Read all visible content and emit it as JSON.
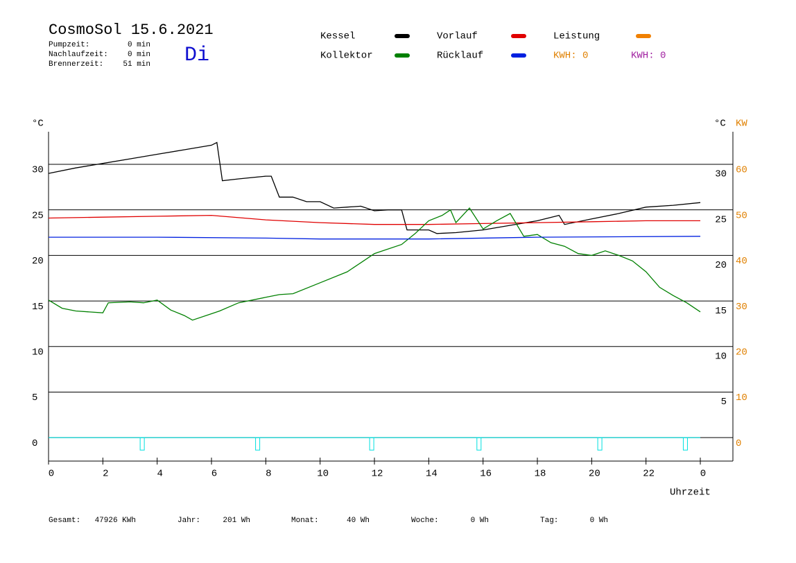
{
  "header": {
    "title": "CosmoSol 15.6.2021",
    "day": "Di",
    "stats": [
      {
        "label": "Pumpzeit:",
        "value": "0 min"
      },
      {
        "label": "Nachlaufzeit:",
        "value": "0 min"
      },
      {
        "label": "Brennerzeit:",
        "value": "51 min"
      }
    ]
  },
  "chart_data": {
    "type": "line",
    "ylabel": "°C",
    "y2label_left": "°C",
    "y2label": "KW",
    "xlabel": "Uhrzeit",
    "xlim": [
      0,
      25.2
    ],
    "xticks": [
      0,
      2,
      4,
      6,
      8,
      10,
      12,
      14,
      16,
      18,
      20,
      22,
      {
        "value": 24,
        "label": "0"
      }
    ],
    "ylim": [
      -2.5,
      33.5
    ],
    "yticks": [
      0,
      5,
      10,
      15,
      20,
      25,
      30
    ],
    "right_yticks": [
      5,
      10,
      15,
      20,
      25,
      30
    ],
    "y2lim": [
      -5,
      67
    ],
    "y2ticks": [
      0,
      10,
      20,
      30,
      40,
      50,
      60
    ],
    "grid": true,
    "series": [
      {
        "name": "Kessel",
        "color": "#000000",
        "x": [
          0,
          1,
          2,
          3,
          4,
          5,
          6,
          6.2,
          6.4,
          7,
          8,
          8.2,
          8.5,
          9,
          9.5,
          10,
          10.5,
          11,
          11.5,
          12,
          12.5,
          13,
          13.2,
          14,
          14.3,
          15,
          16,
          17,
          18,
          18.8,
          19,
          20,
          21,
          22,
          23,
          24
        ],
        "values": [
          29.0,
          29.6,
          30.1,
          30.6,
          31.1,
          31.6,
          32.1,
          32.4,
          28.2,
          28.4,
          28.7,
          28.7,
          26.4,
          26.4,
          25.9,
          25.9,
          25.2,
          25.3,
          25.4,
          24.9,
          25.0,
          25.0,
          22.8,
          22.8,
          22.4,
          22.5,
          22.8,
          23.3,
          23.8,
          24.4,
          23.4,
          24.0,
          24.6,
          25.3,
          25.5,
          25.8
        ]
      },
      {
        "name": "Vorlauf",
        "color": "#e00000",
        "x": [
          0,
          2,
          4,
          6,
          8,
          10,
          12,
          14,
          16,
          18,
          20,
          22,
          24
        ],
        "values": [
          24.1,
          24.2,
          24.3,
          24.4,
          23.9,
          23.6,
          23.4,
          23.4,
          23.5,
          23.6,
          23.7,
          23.8,
          23.8
        ]
      },
      {
        "name": "Leistung",
        "color": "#f08000",
        "x": [],
        "values": []
      },
      {
        "name": "Kollektor",
        "color": "#008000",
        "x": [
          0,
          0.5,
          1,
          2,
          2.2,
          3,
          3.5,
          4,
          4.5,
          5,
          5.3,
          6,
          6.3,
          7,
          8,
          8.5,
          9,
          10,
          11,
          11.5,
          12,
          13,
          13.5,
          14,
          14.5,
          14.8,
          15,
          15.5,
          16,
          16.5,
          17,
          17.5,
          18,
          18.5,
          19,
          19.5,
          20,
          20.5,
          21,
          21.5,
          22,
          22.5,
          23,
          23.5,
          24
        ],
        "values": [
          15.1,
          14.2,
          13.9,
          13.7,
          14.8,
          14.9,
          14.8,
          15.1,
          14.0,
          13.4,
          12.9,
          13.6,
          13.9,
          14.8,
          15.4,
          15.7,
          15.8,
          17.0,
          18.2,
          19.2,
          20.2,
          21.2,
          22.4,
          23.8,
          24.4,
          25.0,
          23.6,
          25.2,
          22.9,
          23.8,
          24.6,
          22.1,
          22.3,
          21.4,
          21.0,
          20.2,
          20.0,
          20.5,
          20.0,
          19.4,
          18.2,
          16.5,
          15.6,
          14.8,
          13.8
        ]
      },
      {
        "name": "Rücklauf",
        "color": "#0020e0",
        "x": [
          0,
          4,
          8,
          10,
          14,
          18,
          24
        ],
        "values": [
          22.0,
          22.0,
          21.9,
          21.8,
          21.8,
          22.0,
          22.1
        ]
      },
      {
        "color": "#00e0e0",
        "x": [
          0,
          24
        ],
        "values": [
          0,
          0
        ]
      }
    ],
    "pulses": {
      "color": "#00e0e0",
      "x": [
        3.45,
        7.7,
        11.9,
        15.85,
        20.3,
        23.45
      ]
    },
    "kwh": [
      {
        "label": "KWH: 0",
        "color": "#e08000"
      },
      {
        "label": "KWH: 0",
        "color": "#a020a0"
      }
    ]
  },
  "footer": [
    {
      "label": "Gesamt:",
      "value": "47926 KWh"
    },
    {
      "label": "Jahr:",
      "value": "201 Wh"
    },
    {
      "label": "Monat:",
      "value": "40 Wh"
    },
    {
      "label": "Woche:",
      "value": "0 Wh"
    },
    {
      "label": "Tag:",
      "value": "0 Wh"
    }
  ]
}
